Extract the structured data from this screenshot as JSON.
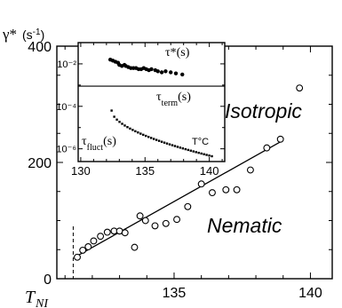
{
  "chart_data": [
    {
      "type": "scatter",
      "ylabel": "γ*(s⁻¹)",
      "xlabel": "",
      "x_tnil_label": "T_NI",
      "x_ticks": [
        135,
        140
      ],
      "y_ticks": [
        0,
        200,
        400
      ],
      "xlim": [
        130.7,
        140.8
      ],
      "ylim": [
        0,
        400
      ],
      "region_labels": [
        "Isotropic",
        "Nematic"
      ],
      "tni_x": 131.3,
      "series": [
        {
          "kind": "open-circles",
          "x": [
            131.45,
            131.65,
            131.85,
            132.05,
            132.3,
            132.55,
            132.8,
            133.0,
            133.2,
            133.55,
            133.75,
            133.95,
            134.3,
            134.7,
            135.1,
            135.5,
            136.0,
            136.4,
            136.9,
            137.3,
            137.8,
            138.4,
            138.9,
            139.6
          ],
          "y": [
            37,
            49,
            55,
            65,
            73,
            80,
            82,
            82,
            79,
            54,
            108,
            100,
            91,
            95,
            102,
            124,
            163,
            148,
            153,
            153,
            187,
            225,
            240,
            328
          ]
        },
        {
          "kind": "fit-line",
          "x": [
            131.4,
            139.0
          ],
          "y": [
            38,
            238
          ]
        }
      ]
    },
    {
      "type": "scatter",
      "subtitle": "inset",
      "x_ticks": [
        130,
        135,
        140
      ],
      "y_tick_labels": [
        "10⁻²",
        "10⁻⁴",
        "10⁻⁶"
      ],
      "labels": {
        "tau_star": "τ*(s)",
        "tau_term": "τterm(s)",
        "tau_fluct": "τfluct(s)",
        "temp_unit": "T°C"
      },
      "series": [
        {
          "name": "τ*(s)",
          "kind": "filled-points",
          "x": [
            132.3,
            132.5,
            132.7,
            132.9,
            133.0,
            133.2,
            133.4,
            133.5,
            133.7,
            133.9,
            134.1,
            134.3,
            134.5,
            134.7,
            134.9,
            135.1,
            135.3,
            135.5,
            135.8,
            136.0,
            136.3,
            136.6,
            137.0,
            137.4,
            137.9
          ],
          "log10_y": [
            -1.8,
            -1.85,
            -1.9,
            -1.95,
            -2.05,
            -2.1,
            -2.05,
            -2.1,
            -2.15,
            -2.2,
            -2.2,
            -2.2,
            -2.25,
            -2.25,
            -2.2,
            -2.25,
            -2.3,
            -2.25,
            -2.3,
            -2.35,
            -2.4,
            -2.35,
            -2.4,
            -2.45,
            -2.5
          ]
        },
        {
          "name": "τterm(s)",
          "kind": "line",
          "log10_y": -3.05
        },
        {
          "name": "τfluct(s)",
          "kind": "filled-points",
          "x_start": 132.4,
          "x_end": 140.2,
          "count": 39,
          "log10_y_start": -4.2,
          "log10_y_end": -6.35
        }
      ]
    }
  ]
}
